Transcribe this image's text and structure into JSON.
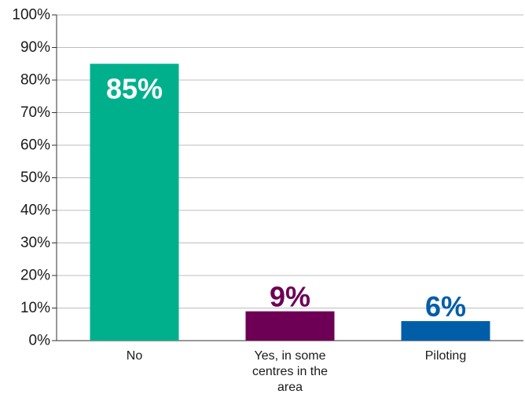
{
  "chart_data": {
    "type": "bar",
    "categories": [
      "No",
      "Yes, in some centres in the area",
      "Piloting"
    ],
    "category_lines": [
      [
        "No"
      ],
      [
        "Yes, in some",
        "centres in the",
        "area"
      ],
      [
        "Piloting"
      ]
    ],
    "values": [
      85,
      9,
      6
    ],
    "data_labels": [
      "85%",
      "9%",
      "6%"
    ],
    "bar_colors": [
      "#00b08d",
      "#6d0055",
      "#005ea8"
    ],
    "data_label_colors": [
      "#ffffff",
      "#6d0055",
      "#005ea8"
    ],
    "yticks": [
      "0%",
      "10%",
      "20%",
      "30%",
      "40%",
      "50%",
      "60%",
      "70%",
      "80%",
      "90%",
      "100%"
    ],
    "ylim": [
      0,
      100
    ],
    "grid": true,
    "title": "",
    "xlabel": "",
    "ylabel": ""
  }
}
